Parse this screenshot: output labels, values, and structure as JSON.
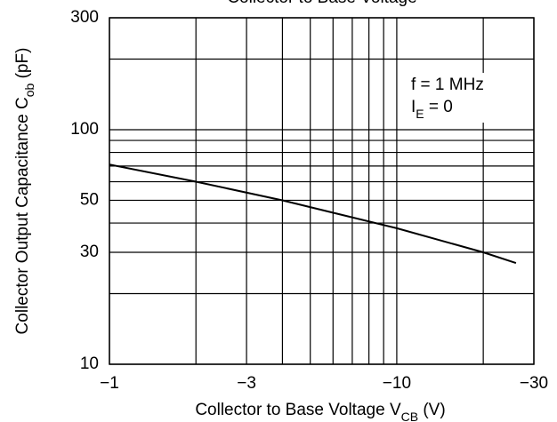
{
  "chart_data": {
    "type": "line",
    "title": "Collector to Base Voltage",
    "x_label": {
      "text": "Collector to Base Voltage  V",
      "sub": "CB",
      "rest": "  (V)"
    },
    "y_label": {
      "text": "Collector Output Capacitance  C",
      "sub": "ob",
      "rest": "  (pF)"
    },
    "annotations": [
      {
        "text": "f = 1 MHz"
      },
      {
        "text": "I",
        "sub": "E",
        "rest": " = 0"
      }
    ],
    "x": [
      -1,
      -2,
      -4,
      -10,
      -20,
      -26
    ],
    "values": [
      71,
      60,
      50,
      38,
      30,
      27
    ],
    "color": "#000000",
    "xscale": "log",
    "yscale": "log",
    "grid": true,
    "xlim": [
      -1,
      -30
    ],
    "xticks": [
      {
        "value": -1,
        "label": "−1"
      },
      {
        "value": -3,
        "label": "−3"
      },
      {
        "value": -10,
        "label": "−10"
      },
      {
        "value": -30,
        "label": "−30"
      }
    ],
    "xminor_ticks": [
      -2,
      -4,
      -5,
      -6,
      -7,
      -8,
      -9,
      -20
    ],
    "ylim": [
      10,
      300
    ],
    "yticks": [
      10,
      30,
      50,
      100,
      300
    ],
    "yminor_ticks": [
      20,
      40,
      60,
      70,
      80,
      90,
      200
    ]
  }
}
